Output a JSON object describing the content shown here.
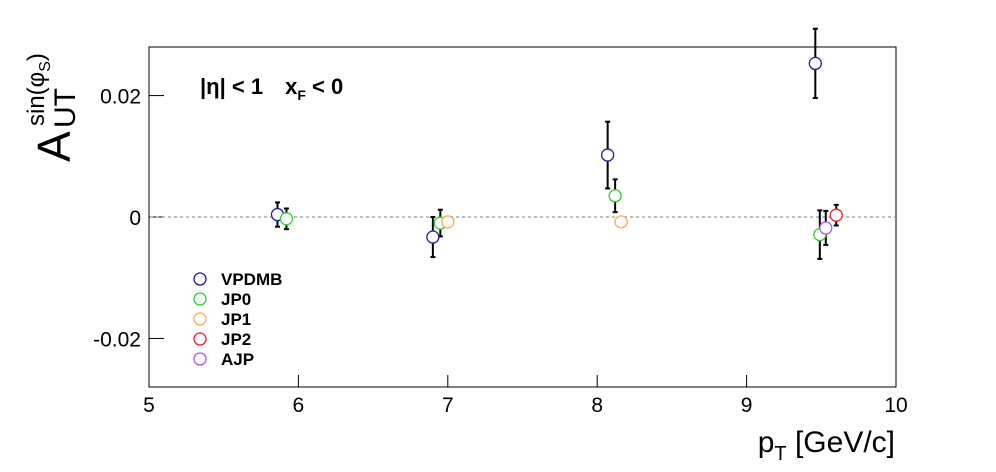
{
  "chart_data": {
    "type": "scatter",
    "y_label": [
      "A",
      "UT",
      "sin(φ",
      "S",
      ")"
    ],
    "x_label": [
      "p",
      "T",
      " [GeV/c]"
    ],
    "annotation": [
      "|η| < 1",
      "x",
      "F",
      " < 0"
    ],
    "xlim": [
      5,
      10
    ],
    "xticks": [
      5,
      6,
      7,
      8,
      9,
      10
    ],
    "ylim": [
      -0.028,
      0.028
    ],
    "yticks": [
      -0.02,
      0,
      0.02
    ],
    "reference_line": 0,
    "series": [
      {
        "name": "VPDMB",
        "color": "#1a1aa0",
        "x": [
          5.86,
          6.9,
          8.07,
          9.46
        ],
        "values": [
          0.0004,
          -0.0033,
          0.0102,
          0.0253
        ],
        "errors": [
          0.002,
          0.0033,
          0.0055,
          0.0057
        ]
      },
      {
        "name": "JP0",
        "color": "#33cc33",
        "x": [
          5.92,
          6.95,
          8.12,
          9.49
        ],
        "values": [
          -0.0003,
          -0.001,
          0.0035,
          -0.0029
        ],
        "errors": [
          0.0017,
          0.0022,
          0.0027,
          0.004
        ]
      },
      {
        "name": "JP1",
        "color": "#ffaa55",
        "x": [
          7.0,
          8.16
        ],
        "values": [
          -0.0008,
          -0.0008
        ],
        "errors": [
          0.0003,
          0.0003
        ]
      },
      {
        "name": "JP2",
        "color": "#ee2222",
        "x": [
          9.6
        ],
        "values": [
          0.0003
        ],
        "errors": [
          0.0017
        ]
      },
      {
        "name": "AJP",
        "color": "#aa55ee",
        "x": [
          9.53
        ],
        "values": [
          -0.0018
        ],
        "errors": [
          0.0028
        ]
      }
    ]
  }
}
